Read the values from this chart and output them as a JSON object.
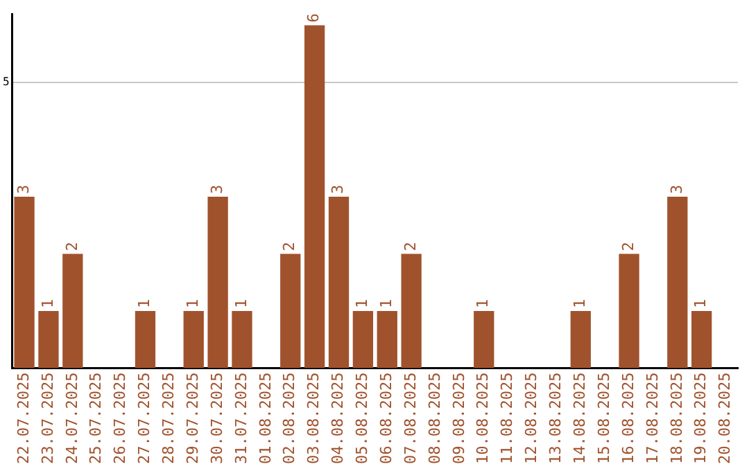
{
  "chart_data": {
    "type": "bar",
    "categories": [
      "22.07.2025",
      "23.07.2025",
      "24.07.2025",
      "25.07.2025",
      "26.07.2025",
      "27.07.2025",
      "28.07.2025",
      "29.07.2025",
      "30.07.2025",
      "31.07.2025",
      "01.08.2025",
      "02.08.2025",
      "03.08.2025",
      "04.08.2025",
      "05.08.2025",
      "06.08.2025",
      "07.08.2025",
      "08.08.2025",
      "09.08.2025",
      "10.08.2025",
      "11.08.2025",
      "12.08.2025",
      "13.08.2025",
      "14.08.2025",
      "15.08.2025",
      "16.08.2025",
      "17.08.2025",
      "18.08.2025",
      "19.08.2025",
      "20.08.2025"
    ],
    "values": [
      3,
      1,
      2,
      0,
      0,
      1,
      0,
      1,
      3,
      1,
      0,
      2,
      6,
      3,
      1,
      1,
      2,
      0,
      0,
      1,
      0,
      0,
      0,
      1,
      0,
      2,
      0,
      3,
      1,
      0
    ],
    "value_labels": [
      "3",
      "1",
      "2",
      null,
      null,
      "1",
      null,
      "1",
      "3",
      "1",
      null,
      "2",
      "6",
      "3",
      "1",
      "1",
      "2",
      null,
      null,
      "1",
      null,
      null,
      null,
      "1",
      null,
      "2",
      null,
      "3",
      "1",
      null
    ],
    "color": "#a0522d",
    "ylim": [
      0,
      6.2
    ],
    "yticks": [
      5
    ],
    "grid": "y",
    "legend": false
  }
}
